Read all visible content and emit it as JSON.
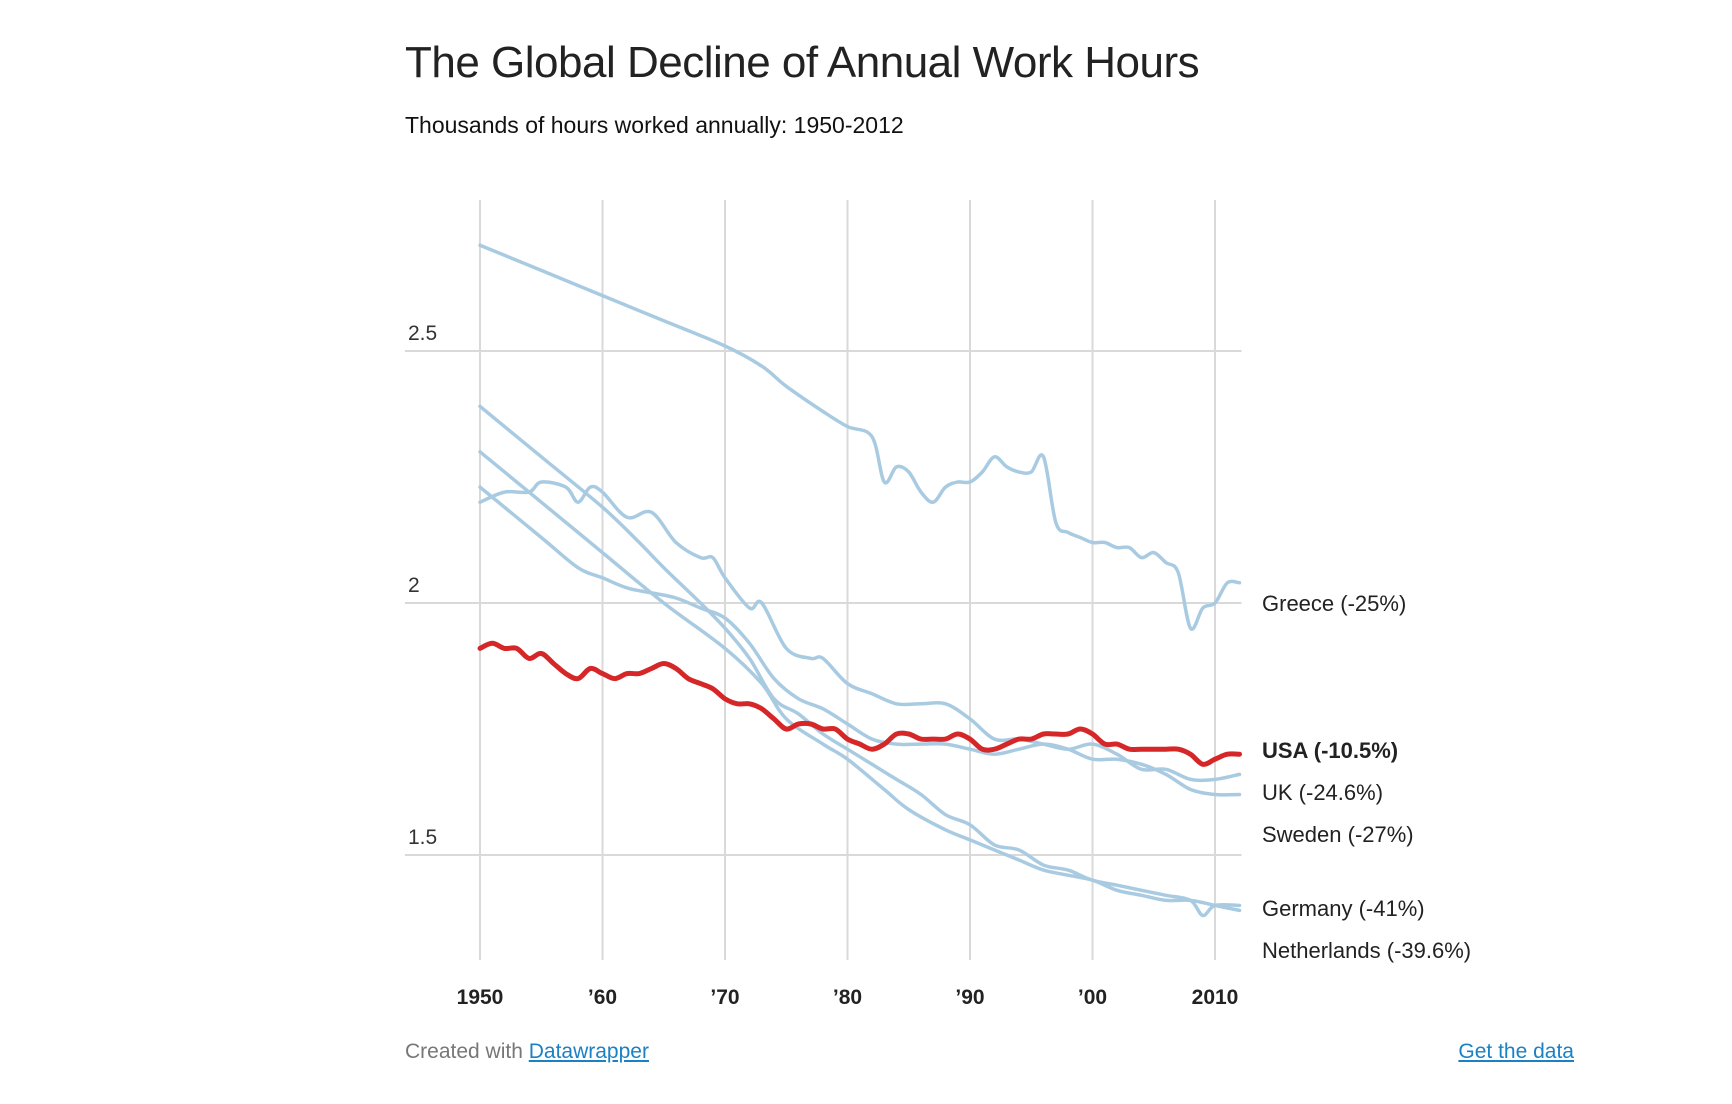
{
  "header": {
    "title": "The Global Decline of Annual Work Hours",
    "subtitle": "Thousands of hours worked annually: 1950-2012"
  },
  "footer": {
    "created_with": "Created with ",
    "created_link": "Datawrapper",
    "get_data": "Get the data"
  },
  "colors": {
    "highlight": "#d62728",
    "series": "#a9cbe2",
    "grid": "#d9d9d9",
    "link": "#1c81c4"
  },
  "chart_data": {
    "type": "line",
    "title": "The Global Decline of Annual Work Hours",
    "subtitle": "Thousands of hours worked annually: 1950-2012",
    "xlabel": "",
    "ylabel": "",
    "xlim": [
      1950,
      2012
    ],
    "ylim": [
      1.3,
      2.8
    ],
    "y_ticks": [
      1.5,
      2,
      2.5
    ],
    "y_tick_labels": [
      "1.5",
      "2",
      "2.5"
    ],
    "x_ticks": [
      1950,
      1960,
      1970,
      1980,
      1990,
      2000,
      2010
    ],
    "x_tick_labels": [
      "1950",
      "’60",
      "’70",
      "’80",
      "’90",
      "’00",
      "2010"
    ],
    "grid": true,
    "highlight_series": "USA",
    "series": [
      {
        "name": "Greece",
        "label": "Greece (-25%)",
        "x": [
          1950,
          1955,
          1960,
          1965,
          1970,
          1973,
          1975,
          1978,
          1980,
          1982,
          1983,
          1984,
          1985,
          1986,
          1987,
          1988,
          1989,
          1990,
          1991,
          1992,
          1993,
          1994,
          1995,
          1996,
          1997,
          1998,
          1999,
          2000,
          2001,
          2002,
          2003,
          2004,
          2005,
          2006,
          2007,
          2008,
          2009,
          2010,
          2011,
          2012
        ],
        "values": [
          2.71,
          2.66,
          2.61,
          2.56,
          2.51,
          2.47,
          2.43,
          2.38,
          2.35,
          2.33,
          2.24,
          2.27,
          2.26,
          2.22,
          2.2,
          2.23,
          2.24,
          2.24,
          2.26,
          2.29,
          2.27,
          2.26,
          2.26,
          2.29,
          2.16,
          2.14,
          2.13,
          2.12,
          2.12,
          2.11,
          2.11,
          2.09,
          2.1,
          2.08,
          2.06,
          1.95,
          1.99,
          2.0,
          2.04,
          2.04
        ]
      },
      {
        "name": "UK",
        "label": "UK (-24.6%)",
        "x": [
          1950,
          1952,
          1954,
          1955,
          1957,
          1958,
          1959,
          1960,
          1962,
          1964,
          1966,
          1968,
          1969,
          1970,
          1972,
          1973,
          1975,
          1977,
          1978,
          1980,
          1982,
          1984,
          1986,
          1988,
          1990,
          1992,
          1994,
          1996,
          1998,
          2000,
          2002,
          2004,
          2006,
          2008,
          2010,
          2012
        ],
        "values": [
          2.2,
          2.22,
          2.22,
          2.24,
          2.23,
          2.2,
          2.23,
          2.22,
          2.17,
          2.18,
          2.12,
          2.09,
          2.09,
          2.05,
          1.99,
          2.0,
          1.91,
          1.89,
          1.89,
          1.84,
          1.82,
          1.8,
          1.8,
          1.8,
          1.77,
          1.73,
          1.73,
          1.72,
          1.71,
          1.72,
          1.7,
          1.67,
          1.67,
          1.65,
          1.65,
          1.66
        ]
      },
      {
        "name": "Sweden",
        "label": "Sweden (-27%)",
        "x": [
          1950,
          1955,
          1958,
          1960,
          1962,
          1964,
          1966,
          1968,
          1970,
          1972,
          1974,
          1976,
          1978,
          1980,
          1982,
          1984,
          1986,
          1988,
          1990,
          1992,
          1994,
          1996,
          1998,
          2000,
          2002,
          2004,
          2006,
          2008,
          2010,
          2012
        ],
        "values": [
          2.23,
          2.13,
          2.07,
          2.05,
          2.03,
          2.02,
          2.01,
          1.99,
          1.97,
          1.92,
          1.85,
          1.81,
          1.79,
          1.76,
          1.73,
          1.72,
          1.72,
          1.72,
          1.71,
          1.7,
          1.71,
          1.72,
          1.71,
          1.69,
          1.69,
          1.68,
          1.66,
          1.63,
          1.62,
          1.62
        ]
      },
      {
        "name": "USA",
        "label": "USA (-10.5%)",
        "x": [
          1950,
          1951,
          1952,
          1953,
          1954,
          1955,
          1956,
          1957,
          1958,
          1959,
          1960,
          1961,
          1962,
          1963,
          1964,
          1965,
          1966,
          1967,
          1968,
          1969,
          1970,
          1971,
          1972,
          1973,
          1974,
          1975,
          1976,
          1977,
          1978,
          1979,
          1980,
          1981,
          1982,
          1983,
          1984,
          1985,
          1986,
          1987,
          1988,
          1989,
          1990,
          1991,
          1992,
          1993,
          1994,
          1995,
          1996,
          1997,
          1998,
          1999,
          2000,
          2001,
          2002,
          2003,
          2004,
          2005,
          2006,
          2007,
          2008,
          2009,
          2010,
          2011,
          2012
        ],
        "values": [
          1.91,
          1.92,
          1.91,
          1.91,
          1.89,
          1.9,
          1.88,
          1.86,
          1.85,
          1.87,
          1.86,
          1.85,
          1.86,
          1.86,
          1.87,
          1.88,
          1.87,
          1.85,
          1.84,
          1.83,
          1.81,
          1.8,
          1.8,
          1.79,
          1.77,
          1.75,
          1.76,
          1.76,
          1.75,
          1.75,
          1.73,
          1.72,
          1.71,
          1.72,
          1.74,
          1.74,
          1.73,
          1.73,
          1.73,
          1.74,
          1.73,
          1.71,
          1.71,
          1.72,
          1.73,
          1.73,
          1.74,
          1.74,
          1.74,
          1.75,
          1.74,
          1.72,
          1.72,
          1.71,
          1.71,
          1.71,
          1.71,
          1.71,
          1.7,
          1.68,
          1.69,
          1.7,
          1.7
        ]
      },
      {
        "name": "Germany",
        "label": "Germany (-41%)",
        "x": [
          1950,
          1955,
          1960,
          1963,
          1965,
          1968,
          1970,
          1972,
          1974,
          1976,
          1978,
          1980,
          1982,
          1984,
          1986,
          1988,
          1990,
          1992,
          1994,
          1996,
          1998,
          2000,
          2002,
          2004,
          2006,
          2008,
          2009,
          2010,
          2012
        ],
        "values": [
          2.39,
          2.29,
          2.19,
          2.12,
          2.07,
          2.0,
          1.95,
          1.89,
          1.81,
          1.78,
          1.74,
          1.71,
          1.68,
          1.65,
          1.62,
          1.58,
          1.56,
          1.52,
          1.51,
          1.48,
          1.47,
          1.45,
          1.44,
          1.43,
          1.42,
          1.41,
          1.38,
          1.4,
          1.4
        ]
      },
      {
        "name": "Netherlands",
        "label": "Netherlands (-39.6%)",
        "x": [
          1950,
          1955,
          1960,
          1965,
          1970,
          1973,
          1975,
          1978,
          1980,
          1983,
          1985,
          1988,
          1990,
          1992,
          1994,
          1996,
          1998,
          2000,
          2002,
          2004,
          2006,
          2008,
          2010,
          2012
        ],
        "values": [
          2.3,
          2.2,
          2.1,
          2.0,
          1.91,
          1.84,
          1.77,
          1.72,
          1.69,
          1.63,
          1.59,
          1.55,
          1.53,
          1.51,
          1.49,
          1.47,
          1.46,
          1.45,
          1.43,
          1.42,
          1.41,
          1.41,
          1.4,
          1.39
        ]
      }
    ]
  }
}
